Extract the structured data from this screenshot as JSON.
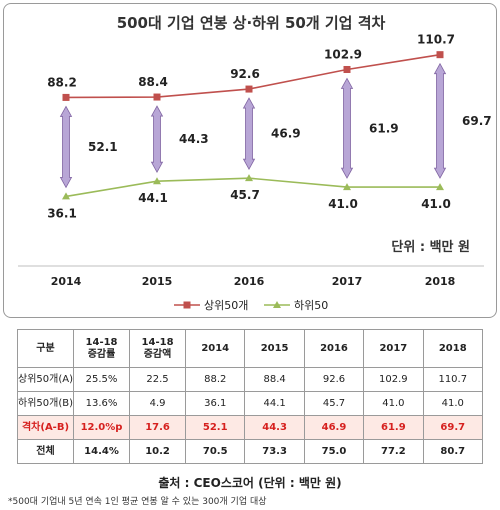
{
  "chart_data": {
    "type": "line",
    "title": "500대 기업 연봉 상·하위 50개 기업 격차",
    "categories": [
      "2014",
      "2015",
      "2016",
      "2017",
      "2018"
    ],
    "series": [
      {
        "name": "상위50개",
        "values": [
          88.2,
          88.4,
          92.6,
          102.9,
          110.7
        ],
        "color": "#c0504d"
      },
      {
        "name": "하위50",
        "values": [
          36.1,
          44.1,
          45.7,
          41.0,
          41.0
        ],
        "color": "#9bbb59"
      }
    ],
    "gap_values": [
      "52.1",
      "44.3",
      "46.9",
      "61.9",
      "69.7"
    ],
    "unit": "단위 : 백만 원",
    "legend_position": "bottom",
    "ylim": [
      20,
      120
    ],
    "grid": false,
    "arrow_color": "#b8a6d6"
  },
  "table": {
    "headers": [
      "구분",
      "14-18\n증감률",
      "14-18\n증감액",
      "2014",
      "2015",
      "2016",
      "2017",
      "2018"
    ],
    "rows": [
      {
        "cells": [
          "상위50개(A)",
          "25.5%",
          "22.5",
          "88.2",
          "88.4",
          "92.6",
          "102.9",
          "110.7"
        ],
        "kind": "normal"
      },
      {
        "cells": [
          "하위50개(B)",
          "13.6%",
          "4.9",
          "36.1",
          "44.1",
          "45.7",
          "41.0",
          "41.0"
        ],
        "kind": "normal"
      },
      {
        "cells": [
          "격차(A-B)",
          "12.0%p",
          "17.6",
          "52.1",
          "44.3",
          "46.9",
          "61.9",
          "69.7"
        ],
        "kind": "gap"
      },
      {
        "cells": [
          "전체",
          "14.4%",
          "10.2",
          "70.5",
          "73.3",
          "75.0",
          "77.2",
          "80.7"
        ],
        "kind": "total"
      }
    ]
  },
  "source": "출처 : CEO스코어 (단위 : 백만 원)",
  "footnote": "*500대 기업내 5년 연속 1인 평균 연봉 알 수 있는 300개 기업 대상"
}
